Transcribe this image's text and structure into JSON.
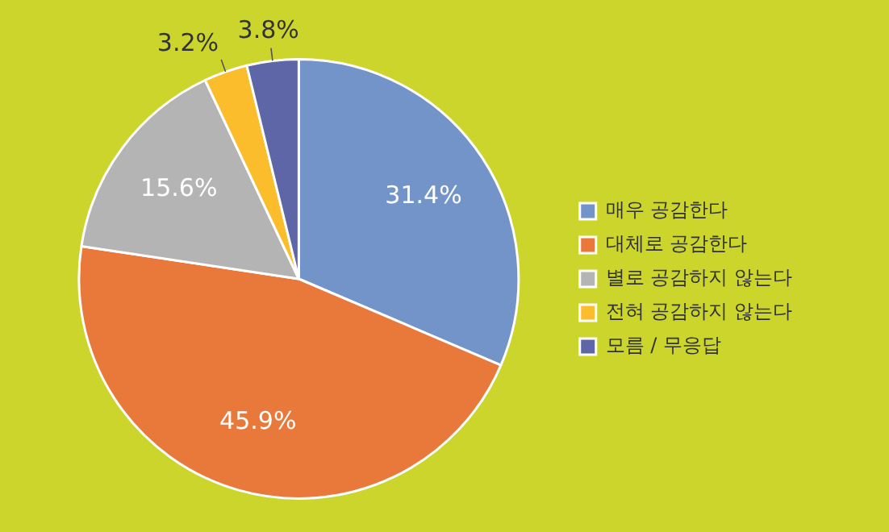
{
  "chart_data": {
    "type": "pie",
    "categories": [
      "매우 공감한다",
      "대체로 공감한다",
      "별로 공감하지 않는다",
      "전혀 공감하지 않는다",
      "모름 / 무응답"
    ],
    "values": [
      31.4,
      45.9,
      15.6,
      3.2,
      3.8
    ],
    "value_labels": [
      "31.4%",
      "45.9%",
      "15.6%",
      "3.2%",
      "3.8%"
    ],
    "colors": [
      "#7394c9",
      "#e8793a",
      "#b4b4b4",
      "#fbbd2b",
      "#5e66a8"
    ],
    "legend": "right"
  }
}
